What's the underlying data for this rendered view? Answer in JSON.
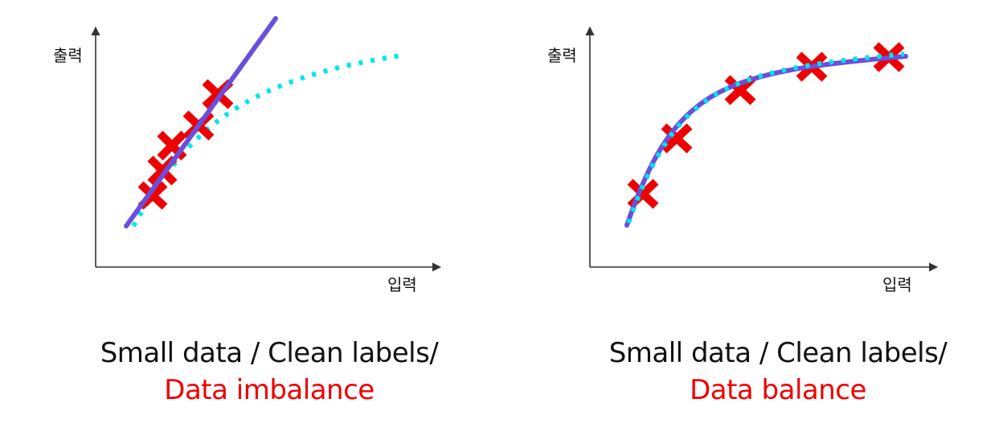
{
  "colors": {
    "axis": "#333333",
    "fit_line": "#6a4fdc",
    "true_curve": "#00e5ee",
    "marker": "#ee0000",
    "caption_text": "#111111",
    "caption_highlight": "#ee0000"
  },
  "panels": [
    {
      "axes": {
        "y_label": "출력",
        "x_label": "입력"
      },
      "caption": {
        "line1": "Small data / Clean labels/",
        "line2": "Data imbalance"
      },
      "fit_kind": "linear"
    },
    {
      "axes": {
        "y_label": "출력",
        "x_label": "입력"
      },
      "caption": {
        "line1": "Small data / Clean labels/",
        "line2": "Data balance"
      },
      "fit_kind": "curve"
    }
  ]
}
